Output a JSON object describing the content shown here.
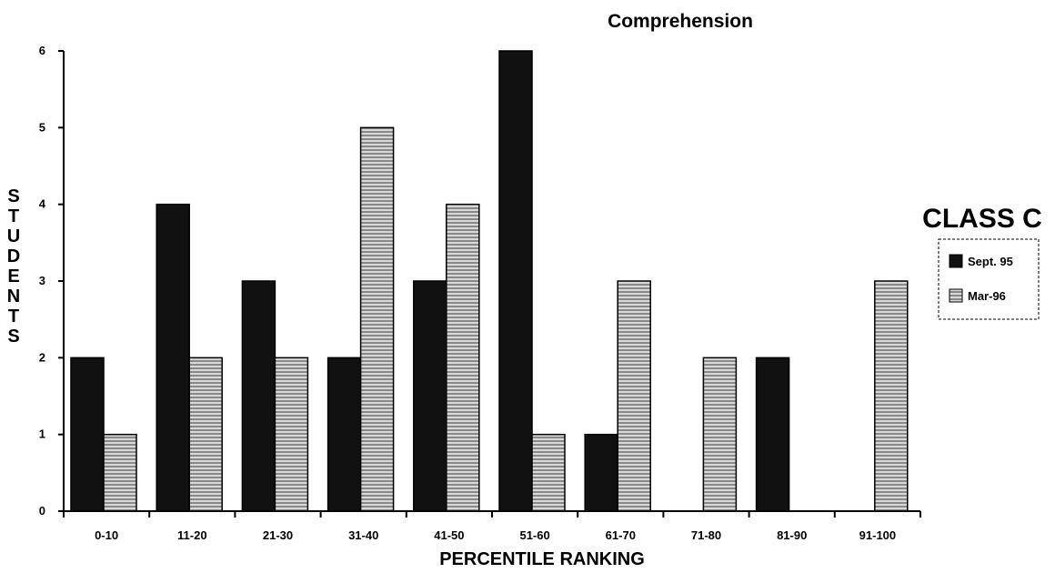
{
  "chart_data": {
    "type": "bar",
    "title": "Comprehension",
    "xlabel": "PERCENTILE RANKING",
    "ylabel": "STUDENTS",
    "categories": [
      "0-10",
      "11-20",
      "21-30",
      "31-40",
      "41-50",
      "51-60",
      "61-70",
      "71-80",
      "81-90",
      "91-100"
    ],
    "series": [
      {
        "name": "Sept. 95",
        "values": [
          2,
          4,
          3,
          2,
          3,
          6,
          1,
          0,
          2,
          0
        ],
        "color": "#111111",
        "pattern": "solid"
      },
      {
        "name": "Mar-96",
        "values": [
          1,
          2,
          2,
          5,
          4,
          1,
          3,
          2,
          0,
          3
        ],
        "color": "#bdbdbd",
        "pattern": "horizontal-stripes"
      }
    ],
    "ylim": [
      0,
      6
    ],
    "yticks": [
      0,
      1,
      2,
      3,
      4,
      5,
      6
    ],
    "grid": false,
    "legend": {
      "title": "CLASS C",
      "position": "right"
    }
  }
}
